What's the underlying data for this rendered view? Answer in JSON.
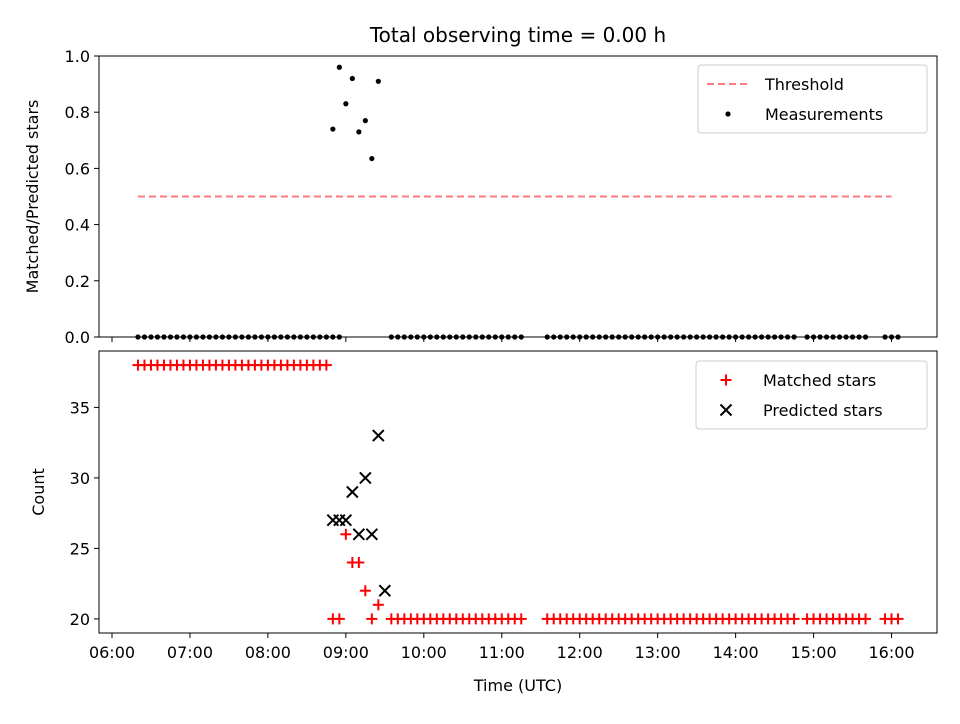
{
  "chart_data": [
    {
      "type": "scatter",
      "title": "Total observing time = 0.00 h",
      "ylabel": "Matched/Predicted stars",
      "xlabel": "",
      "ylim": [
        0,
        1.0
      ],
      "yticks": [
        "0.0",
        "0.2",
        "0.4",
        "0.6",
        "0.8",
        "1.0"
      ],
      "legend_position": "top-right",
      "threshold": {
        "name": "Threshold",
        "value": 0.5,
        "x_start": "06:20",
        "x_end": "16:00",
        "color": "#ff7b7b"
      },
      "series": [
        {
          "name": "Measurements",
          "marker": "dot",
          "color": "#000000",
          "points": [
            [
              "06:20",
              0
            ],
            [
              "06:25",
              0
            ],
            [
              "06:30",
              0
            ],
            [
              "06:35",
              0
            ],
            [
              "06:40",
              0
            ],
            [
              "06:45",
              0
            ],
            [
              "06:50",
              0
            ],
            [
              "06:55",
              0
            ],
            [
              "07:00",
              0
            ],
            [
              "07:05",
              0
            ],
            [
              "07:10",
              0
            ],
            [
              "07:15",
              0
            ],
            [
              "07:20",
              0
            ],
            [
              "07:25",
              0
            ],
            [
              "07:30",
              0
            ],
            [
              "07:35",
              0
            ],
            [
              "07:40",
              0
            ],
            [
              "07:45",
              0
            ],
            [
              "07:50",
              0
            ],
            [
              "07:55",
              0
            ],
            [
              "08:00",
              0
            ],
            [
              "08:05",
              0
            ],
            [
              "08:10",
              0
            ],
            [
              "08:15",
              0
            ],
            [
              "08:20",
              0
            ],
            [
              "08:25",
              0
            ],
            [
              "08:30",
              0
            ],
            [
              "08:35",
              0
            ],
            [
              "08:40",
              0
            ],
            [
              "08:45",
              0
            ],
            [
              "08:50",
              0
            ],
            [
              "08:55",
              0
            ],
            [
              "08:50",
              0.74
            ],
            [
              "08:55",
              0.96
            ],
            [
              "09:00",
              0.83
            ],
            [
              "09:05",
              0.92
            ],
            [
              "09:10",
              0.73
            ],
            [
              "09:15",
              0.77
            ],
            [
              "09:20",
              0.635
            ],
            [
              "09:25",
              0.91
            ],
            [
              "09:35",
              0
            ],
            [
              "09:40",
              0
            ],
            [
              "09:45",
              0
            ],
            [
              "09:50",
              0
            ],
            [
              "09:55",
              0
            ],
            [
              "10:00",
              0
            ],
            [
              "10:05",
              0
            ],
            [
              "10:10",
              0
            ],
            [
              "10:15",
              0
            ],
            [
              "10:20",
              0
            ],
            [
              "10:25",
              0
            ],
            [
              "10:30",
              0
            ],
            [
              "10:35",
              0
            ],
            [
              "10:40",
              0
            ],
            [
              "10:45",
              0
            ],
            [
              "10:50",
              0
            ],
            [
              "10:55",
              0
            ],
            [
              "11:00",
              0
            ],
            [
              "11:05",
              0
            ],
            [
              "11:10",
              0
            ],
            [
              "11:15",
              0
            ],
            [
              "11:35",
              0
            ],
            [
              "11:40",
              0
            ],
            [
              "11:45",
              0
            ],
            [
              "11:50",
              0
            ],
            [
              "11:55",
              0
            ],
            [
              "12:00",
              0
            ],
            [
              "12:05",
              0
            ],
            [
              "12:10",
              0
            ],
            [
              "12:15",
              0
            ],
            [
              "12:20",
              0
            ],
            [
              "12:25",
              0
            ],
            [
              "12:30",
              0
            ],
            [
              "12:35",
              0
            ],
            [
              "12:40",
              0
            ],
            [
              "12:45",
              0
            ],
            [
              "12:50",
              0
            ],
            [
              "12:55",
              0
            ],
            [
              "13:00",
              0
            ],
            [
              "13:05",
              0
            ],
            [
              "13:10",
              0
            ],
            [
              "13:15",
              0
            ],
            [
              "13:20",
              0
            ],
            [
              "13:25",
              0
            ],
            [
              "13:30",
              0
            ],
            [
              "13:35",
              0
            ],
            [
              "13:40",
              0
            ],
            [
              "13:45",
              0
            ],
            [
              "13:50",
              0
            ],
            [
              "13:55",
              0
            ],
            [
              "14:00",
              0
            ],
            [
              "14:05",
              0
            ],
            [
              "14:10",
              0
            ],
            [
              "14:15",
              0
            ],
            [
              "14:20",
              0
            ],
            [
              "14:25",
              0
            ],
            [
              "14:30",
              0
            ],
            [
              "14:35",
              0
            ],
            [
              "14:40",
              0
            ],
            [
              "14:45",
              0
            ],
            [
              "14:55",
              0
            ],
            [
              "15:00",
              0
            ],
            [
              "15:05",
              0
            ],
            [
              "15:10",
              0
            ],
            [
              "15:15",
              0
            ],
            [
              "15:20",
              0
            ],
            [
              "15:25",
              0
            ],
            [
              "15:30",
              0
            ],
            [
              "15:35",
              0
            ],
            [
              "15:40",
              0
            ],
            [
              "15:55",
              0
            ],
            [
              "16:00",
              0
            ],
            [
              "16:05",
              0
            ]
          ]
        }
      ]
    },
    {
      "type": "scatter",
      "title": "",
      "xlabel": "Time (UTC)",
      "ylabel": "Count",
      "ylim": [
        19,
        39
      ],
      "yticks": [
        "20",
        "25",
        "30",
        "35"
      ],
      "xticks": [
        "06:00",
        "07:00",
        "08:00",
        "09:00",
        "10:00",
        "11:00",
        "12:00",
        "13:00",
        "14:00",
        "15:00",
        "16:00"
      ],
      "xlim": [
        "05:50",
        "16:35"
      ],
      "legend_position": "top-right",
      "series": [
        {
          "name": "Matched stars",
          "marker": "plus",
          "color": "#ff0000",
          "points": [
            [
              "06:20",
              38
            ],
            [
              "06:25",
              38
            ],
            [
              "06:30",
              38
            ],
            [
              "06:35",
              38
            ],
            [
              "06:40",
              38
            ],
            [
              "06:45",
              38
            ],
            [
              "06:50",
              38
            ],
            [
              "06:55",
              38
            ],
            [
              "07:00",
              38
            ],
            [
              "07:05",
              38
            ],
            [
              "07:10",
              38
            ],
            [
              "07:15",
              38
            ],
            [
              "07:20",
              38
            ],
            [
              "07:25",
              38
            ],
            [
              "07:30",
              38
            ],
            [
              "07:35",
              38
            ],
            [
              "07:40",
              38
            ],
            [
              "07:45",
              38
            ],
            [
              "07:50",
              38
            ],
            [
              "07:55",
              38
            ],
            [
              "08:00",
              38
            ],
            [
              "08:05",
              38
            ],
            [
              "08:10",
              38
            ],
            [
              "08:15",
              38
            ],
            [
              "08:20",
              38
            ],
            [
              "08:25",
              38
            ],
            [
              "08:30",
              38
            ],
            [
              "08:35",
              38
            ],
            [
              "08:40",
              38
            ],
            [
              "08:45",
              38
            ],
            [
              "08:50",
              20
            ],
            [
              "08:55",
              20
            ],
            [
              "09:00",
              26
            ],
            [
              "09:05",
              24
            ],
            [
              "09:10",
              24
            ],
            [
              "09:15",
              22
            ],
            [
              "09:20",
              20
            ],
            [
              "09:25",
              21
            ],
            [
              "09:35",
              20
            ],
            [
              "09:40",
              20
            ],
            [
              "09:45",
              20
            ],
            [
              "09:50",
              20
            ],
            [
              "09:55",
              20
            ],
            [
              "10:00",
              20
            ],
            [
              "10:05",
              20
            ],
            [
              "10:10",
              20
            ],
            [
              "10:15",
              20
            ],
            [
              "10:20",
              20
            ],
            [
              "10:25",
              20
            ],
            [
              "10:30",
              20
            ],
            [
              "10:35",
              20
            ],
            [
              "10:40",
              20
            ],
            [
              "10:45",
              20
            ],
            [
              "10:50",
              20
            ],
            [
              "10:55",
              20
            ],
            [
              "11:00",
              20
            ],
            [
              "11:05",
              20
            ],
            [
              "11:10",
              20
            ],
            [
              "11:15",
              20
            ],
            [
              "11:35",
              20
            ],
            [
              "11:40",
              20
            ],
            [
              "11:45",
              20
            ],
            [
              "11:50",
              20
            ],
            [
              "11:55",
              20
            ],
            [
              "12:00",
              20
            ],
            [
              "12:05",
              20
            ],
            [
              "12:10",
              20
            ],
            [
              "12:15",
              20
            ],
            [
              "12:20",
              20
            ],
            [
              "12:25",
              20
            ],
            [
              "12:30",
              20
            ],
            [
              "12:35",
              20
            ],
            [
              "12:40",
              20
            ],
            [
              "12:45",
              20
            ],
            [
              "12:50",
              20
            ],
            [
              "12:55",
              20
            ],
            [
              "13:00",
              20
            ],
            [
              "13:05",
              20
            ],
            [
              "13:10",
              20
            ],
            [
              "13:15",
              20
            ],
            [
              "13:20",
              20
            ],
            [
              "13:25",
              20
            ],
            [
              "13:30",
              20
            ],
            [
              "13:35",
              20
            ],
            [
              "13:40",
              20
            ],
            [
              "13:45",
              20
            ],
            [
              "13:50",
              20
            ],
            [
              "13:55",
              20
            ],
            [
              "14:00",
              20
            ],
            [
              "14:05",
              20
            ],
            [
              "14:10",
              20
            ],
            [
              "14:15",
              20
            ],
            [
              "14:20",
              20
            ],
            [
              "14:25",
              20
            ],
            [
              "14:30",
              20
            ],
            [
              "14:35",
              20
            ],
            [
              "14:40",
              20
            ],
            [
              "14:45",
              20
            ],
            [
              "14:55",
              20
            ],
            [
              "15:00",
              20
            ],
            [
              "15:05",
              20
            ],
            [
              "15:10",
              20
            ],
            [
              "15:15",
              20
            ],
            [
              "15:20",
              20
            ],
            [
              "15:25",
              20
            ],
            [
              "15:30",
              20
            ],
            [
              "15:35",
              20
            ],
            [
              "15:40",
              20
            ],
            [
              "15:55",
              20
            ],
            [
              "16:00",
              20
            ],
            [
              "16:05",
              20
            ]
          ]
        },
        {
          "name": "Predicted stars",
          "marker": "x",
          "color": "#000000",
          "points": [
            [
              "08:50",
              27
            ],
            [
              "08:55",
              27
            ],
            [
              "09:00",
              27
            ],
            [
              "09:05",
              29
            ],
            [
              "09:10",
              26
            ],
            [
              "09:15",
              30
            ],
            [
              "09:20",
              26
            ],
            [
              "09:25",
              33
            ],
            [
              "09:30",
              22
            ]
          ]
        }
      ]
    }
  ]
}
